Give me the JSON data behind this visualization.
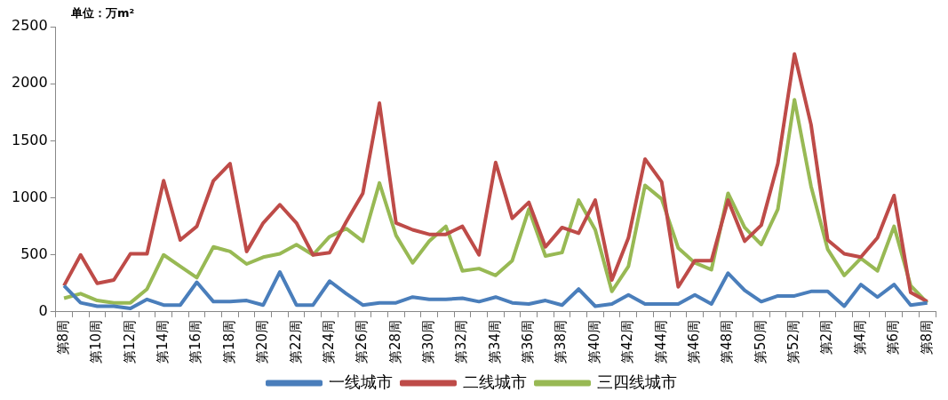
{
  "chart_data": {
    "type": "line",
    "ylabel": "单位：万m²",
    "categories": [
      "第8周",
      null,
      "第10周",
      null,
      "第12周",
      null,
      "第14周",
      null,
      "第16周",
      null,
      "第18周",
      null,
      "第20周",
      null,
      "第22周",
      null,
      "第24周",
      null,
      "第26周",
      null,
      "第28周",
      null,
      "第30周",
      null,
      "第32周",
      null,
      "第34周",
      null,
      "第36周",
      null,
      "第38周",
      null,
      "第40周",
      null,
      "第42周",
      null,
      "第44周",
      null,
      "第46周",
      null,
      "第48周",
      null,
      "第50周",
      null,
      "第52周",
      null,
      "第2周",
      null,
      "第4周",
      null,
      "第6周",
      null,
      "第8周"
    ],
    "series": [
      {
        "name": "一线城市",
        "color": "#4a7ebb",
        "values": [
          230,
          80,
          50,
          50,
          30,
          110,
          60,
          60,
          260,
          90,
          90,
          100,
          60,
          350,
          60,
          60,
          270,
          160,
          60,
          80,
          80,
          130,
          110,
          110,
          120,
          90,
          130,
          80,
          70,
          100,
          60,
          200,
          50,
          70,
          150,
          70,
          70,
          70,
          150,
          70,
          340,
          190,
          90,
          140,
          140,
          180,
          180,
          50,
          240,
          130,
          240,
          60,
          80
        ]
      },
      {
        "name": "二线城市",
        "color": "#be4b48",
        "values": [
          230,
          500,
          250,
          280,
          510,
          510,
          1150,
          630,
          750,
          1150,
          1300,
          530,
          780,
          940,
          780,
          500,
          520,
          790,
          1040,
          1830,
          780,
          720,
          680,
          680,
          750,
          500,
          1310,
          820,
          960,
          570,
          740,
          690,
          980,
          280,
          650,
          1340,
          1140,
          220,
          450,
          450,
          980,
          620,
          760,
          1300,
          2260,
          1640,
          630,
          510,
          480,
          650,
          1020,
          170,
          90
        ]
      },
      {
        "name": "三四线城市",
        "color": "#98b954",
        "values": [
          120,
          160,
          100,
          80,
          80,
          200,
          500,
          400,
          300,
          570,
          530,
          420,
          480,
          510,
          590,
          500,
          660,
          730,
          620,
          1130,
          670,
          430,
          620,
          750,
          360,
          380,
          320,
          450,
          900,
          490,
          520,
          980,
          720,
          180,
          400,
          1110,
          990,
          560,
          430,
          370,
          1040,
          740,
          590,
          900,
          1860,
          1100,
          550,
          320,
          470,
          360,
          750,
          230,
          80
        ]
      }
    ],
    "ylim": [
      0,
      2500
    ],
    "yticks": [
      0,
      500,
      1000,
      1500,
      2000,
      2500
    ],
    "grid": false,
    "legend": "bottom",
    "marker": "none",
    "line_style": "solid"
  }
}
